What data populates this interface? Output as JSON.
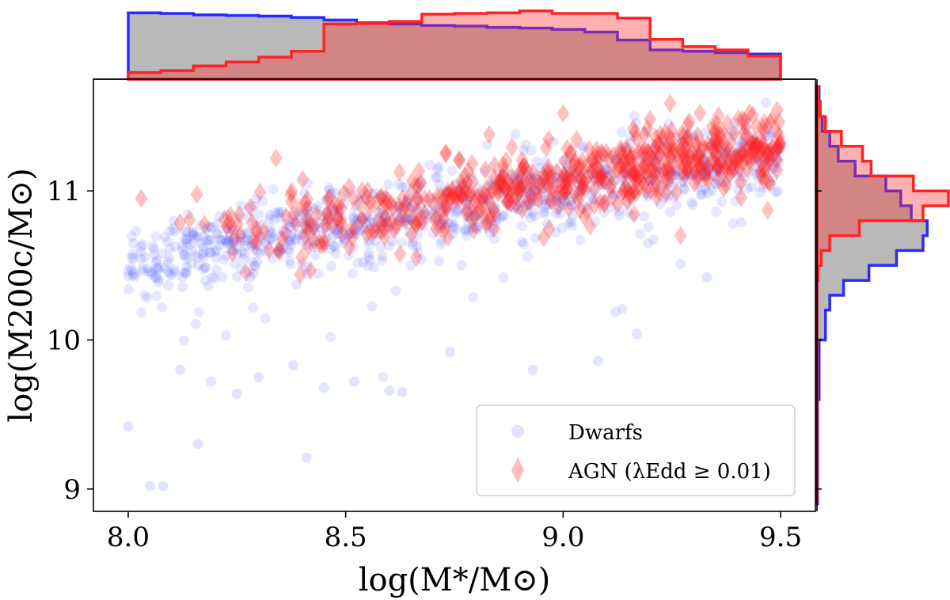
{
  "chart_data": {
    "type": "scatter",
    "xlabel": "log(M*/M⊙)",
    "ylabel": "log(M200c/M⊙)",
    "xlim": [
      7.92,
      9.58
    ],
    "ylim": [
      8.85,
      11.75
    ],
    "xticks": [
      8.0,
      8.5,
      9.0,
      9.5
    ],
    "xtick_labels": [
      "8.0",
      "8.5",
      "9.0",
      "9.5"
    ],
    "yticks": [
      9,
      10,
      11
    ],
    "ytick_labels": [
      "9",
      "10",
      "11"
    ],
    "legend": {
      "location": "lower-right",
      "entries": [
        {
          "label": "Dwarfs",
          "marker": "circle",
          "color": "#3344ff"
        },
        {
          "label": "AGN (λEdd ≥ 0.01)",
          "marker": "diamond",
          "color": "#ff2222"
        }
      ]
    },
    "series": [
      {
        "name": "Dwarfs",
        "color": "#3344ff",
        "marker": "circle",
        "trend_line": {
          "slope": 0.49,
          "intercept_at_8": 10.53,
          "scatter_sd": 0.13
        },
        "n_points_approx": 900,
        "outliers": [
          [
            8.0,
            9.42
          ],
          [
            8.05,
            9.02
          ],
          [
            8.08,
            9.02
          ],
          [
            8.16,
            9.3
          ],
          [
            8.41,
            9.21
          ],
          [
            8.12,
            9.8
          ],
          [
            8.19,
            9.72
          ],
          [
            8.25,
            9.64
          ],
          [
            8.3,
            9.75
          ],
          [
            8.38,
            9.83
          ],
          [
            8.45,
            9.68
          ],
          [
            8.52,
            9.72
          ],
          [
            8.6,
            9.66
          ],
          [
            8.63,
            9.65
          ],
          [
            8.74,
            9.92
          ],
          [
            8.93,
            9.8
          ],
          [
            9.08,
            9.86
          ],
          [
            9.17,
            10.04
          ],
          [
            9.27,
            10.51
          ],
          [
            9.33,
            10.42
          ]
        ]
      },
      {
        "name": "AGN (λEdd ≥ 0.01)",
        "color": "#ff2222",
        "marker": "diamond",
        "trend_line": {
          "slope": 0.47,
          "intercept_at_8": 10.6,
          "scatter_sd": 0.13
        },
        "n_points_approx": 650,
        "outliers": [
          [
            8.03,
            10.95
          ],
          [
            8.34,
            11.22
          ],
          [
            8.44,
            10.65
          ],
          [
            8.73,
            11.25
          ],
          [
            8.83,
            11.38
          ],
          [
            9.0,
            11.52
          ],
          [
            9.2,
            11.48
          ],
          [
            9.27,
            10.7
          ],
          [
            9.47,
            10.87
          ]
        ]
      }
    ],
    "marginal_histograms": {
      "x": {
        "bin_edges": [
          8.0,
          8.075,
          8.15,
          8.225,
          8.3,
          8.375,
          8.45,
          8.525,
          8.6,
          8.675,
          8.75,
          8.825,
          8.9,
          8.975,
          9.05,
          9.125,
          9.2,
          9.275,
          9.35,
          9.425,
          9.5
        ],
        "Dwarfs": [
          1.0,
          0.99,
          0.97,
          0.96,
          0.95,
          0.93,
          0.89,
          0.85,
          0.83,
          0.81,
          0.8,
          0.78,
          0.77,
          0.75,
          0.71,
          0.59,
          0.44,
          0.42,
          0.4,
          0.38
        ],
        "AGN (λEdd ≥ 0.01)": [
          0.1,
          0.13,
          0.2,
          0.26,
          0.33,
          0.42,
          0.83,
          0.84,
          0.87,
          0.98,
          0.99,
          1.0,
          1.03,
          0.99,
          0.99,
          0.92,
          0.6,
          0.49,
          0.44,
          0.35
        ]
      },
      "y": {
        "bin_edges": [
          8.9,
          9.6,
          10.0,
          10.2,
          10.3,
          10.4,
          10.5,
          10.6,
          10.7,
          10.8,
          10.9,
          11.0,
          11.1,
          11.2,
          11.3,
          11.4,
          11.5,
          11.6,
          11.7
        ],
        "Dwarfs": [
          0.005,
          0.02,
          0.08,
          0.12,
          0.25,
          0.49,
          0.75,
          1.0,
          1.04,
          0.89,
          0.79,
          0.65,
          0.36,
          0.2,
          0.12,
          0.05,
          0.03,
          0.02
        ],
        "AGN (λEdd ≥ 0.01)": [
          0.0,
          0.0,
          0.0,
          0.0,
          0.0,
          0.01,
          0.04,
          0.12,
          0.4,
          1.0,
          1.24,
          0.91,
          0.51,
          0.43,
          0.23,
          0.08,
          0.03,
          0.01
        ]
      }
    }
  }
}
